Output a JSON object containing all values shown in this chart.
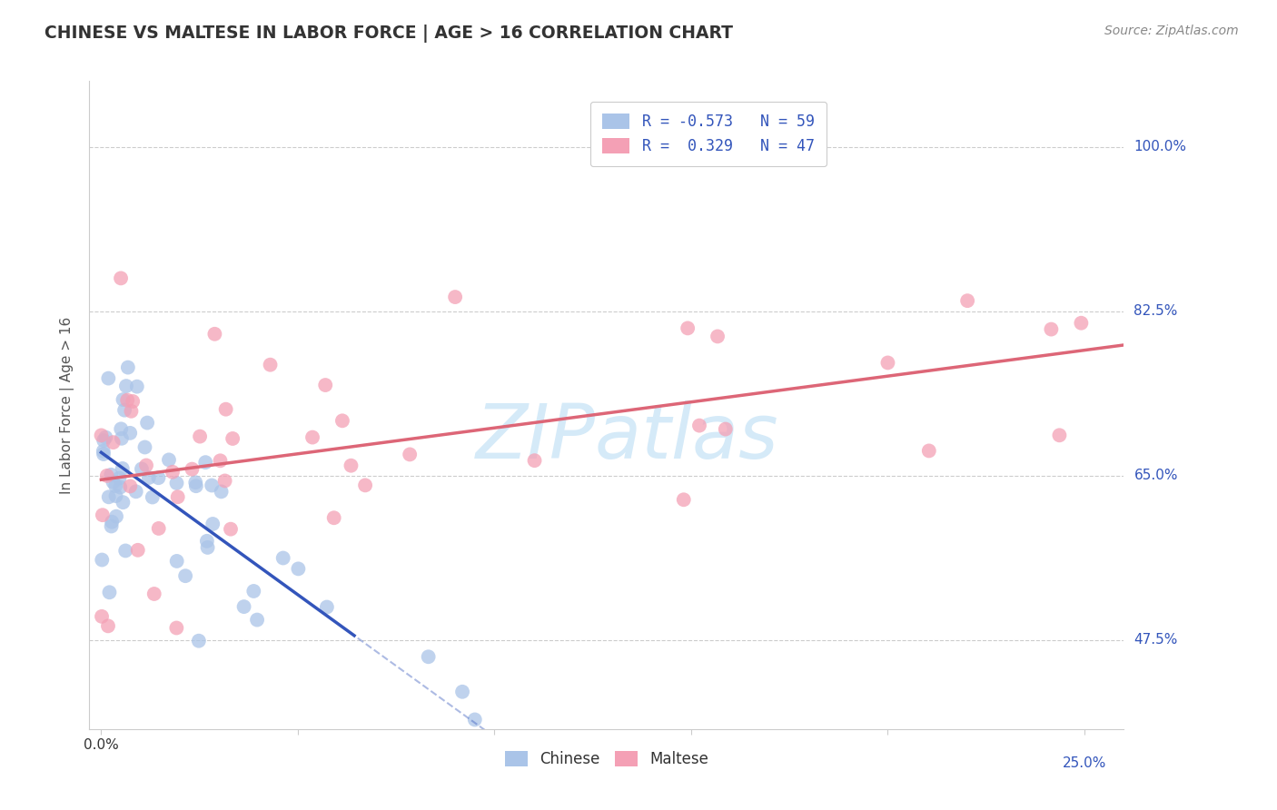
{
  "title": "CHINESE VS MALTESE IN LABOR FORCE | AGE > 16 CORRELATION CHART",
  "source": "Source: ZipAtlas.com",
  "ylabel": "In Labor Force | Age > 16",
  "xlim": [
    -0.3,
    26.0
  ],
  "ylim": [
    38.0,
    107.0
  ],
  "ytick_values": [
    47.5,
    65.0,
    82.5,
    100.0
  ],
  "ytick_labels": [
    "47.5%",
    "65.0%",
    "82.5%",
    "100.0%"
  ],
  "xtick_values": [
    0,
    5,
    10,
    15,
    20,
    25
  ],
  "chinese_color": "#aac4e8",
  "maltese_color": "#f4a0b5",
  "chinese_line_color": "#3355bb",
  "maltese_line_color": "#dd6677",
  "R_chinese": -0.573,
  "N_chinese": 59,
  "R_maltese": 0.329,
  "N_maltese": 47,
  "watermark_text": "ZIPatlas",
  "background_color": "#ffffff",
  "grid_color": "#cccccc",
  "title_color": "#333333",
  "source_color": "#888888",
  "axis_label_color": "#555555",
  "legend_text_color": "#3355bb"
}
